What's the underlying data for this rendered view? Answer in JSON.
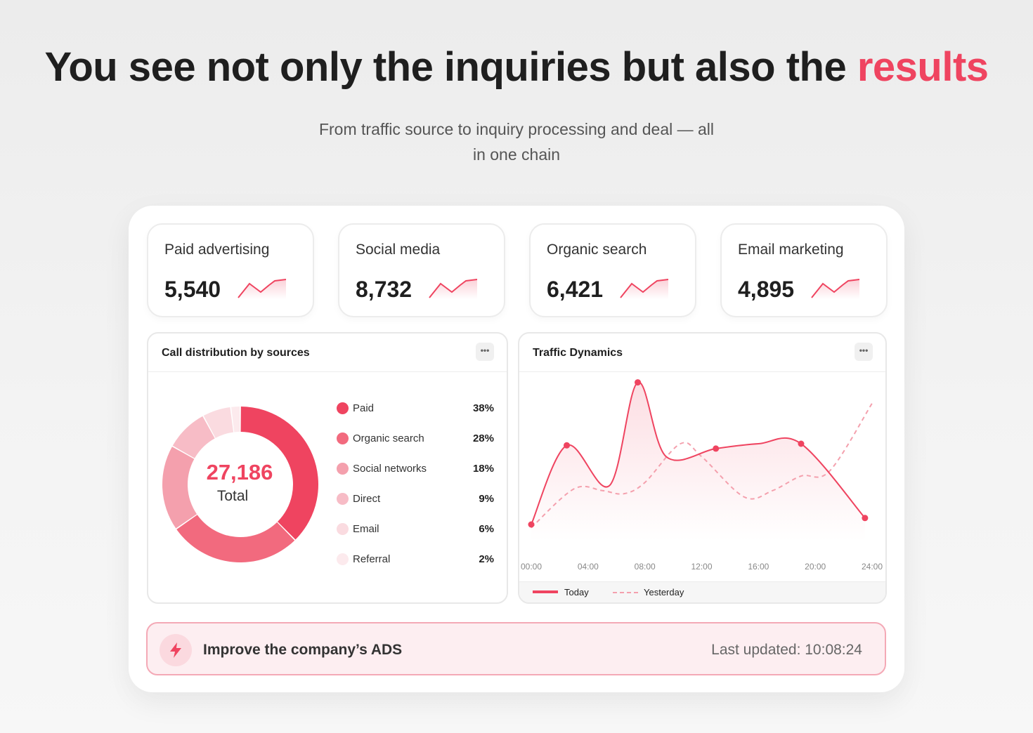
{
  "hero": {
    "headline_main": "You see not only the inquiries but also the ",
    "headline_accent": "results",
    "subtitle_line1": "From traffic source to inquiry processing and deal — all",
    "subtitle_line2": "in one chain"
  },
  "stats": [
    {
      "label": "Paid advertising",
      "value": "5,540"
    },
    {
      "label": "Social media",
      "value": "8,732"
    },
    {
      "label": "Organic search",
      "value": "6,421"
    },
    {
      "label": "Email marketing",
      "value": "4,895"
    }
  ],
  "call_distribution": {
    "title": "Call distribution by sources",
    "more_label": "•••",
    "total_value": "27,186",
    "total_label": "Total",
    "items": [
      {
        "name": "Paid",
        "pct": "38%",
        "color": "#ef4460"
      },
      {
        "name": "Organic search",
        "pct": "28%",
        "color": "#f26a7e"
      },
      {
        "name": "Social networks",
        "pct": "18%",
        "color": "#f4a0ad"
      },
      {
        "name": "Direct",
        "pct": "9%",
        "color": "#f7bcc6"
      },
      {
        "name": "Email",
        "pct": "6%",
        "color": "#fadbe0"
      },
      {
        "name": "Referral",
        "pct": "2%",
        "color": "#fceaed"
      }
    ]
  },
  "traffic": {
    "title": "Traffic Dynamics",
    "more_label": "•••",
    "legend_today": "Today",
    "legend_yesterday": "Yesterday",
    "accent_color": "#ef4460"
  },
  "chart_data": {
    "type": "line",
    "x": [
      "00:00",
      "04:00",
      "08:00",
      "12:00",
      "16:00",
      "20:00",
      "24:00"
    ],
    "xlabel": "",
    "ylabel": "",
    "grid": false,
    "legend": "bottom-left",
    "series": [
      {
        "name": "Today",
        "x": [
          0,
          2.5,
          5.5,
          7.5,
          9.5,
          13,
          16,
          19,
          23.5
        ],
        "values": [
          10,
          59,
          34,
          98,
          52,
          57,
          60,
          60,
          14
        ]
      },
      {
        "name": "Yesterday",
        "x": [
          0,
          3,
          5,
          6.5,
          8,
          10.5,
          12,
          15,
          17,
          19,
          21,
          24
        ],
        "values": [
          8,
          32,
          31,
          29,
          36,
          60,
          52,
          27,
          31,
          40,
          43,
          85
        ]
      }
    ]
  },
  "banner": {
    "title": "Improve the company’s ADS",
    "updated": "Last updated: 10:08:24"
  }
}
